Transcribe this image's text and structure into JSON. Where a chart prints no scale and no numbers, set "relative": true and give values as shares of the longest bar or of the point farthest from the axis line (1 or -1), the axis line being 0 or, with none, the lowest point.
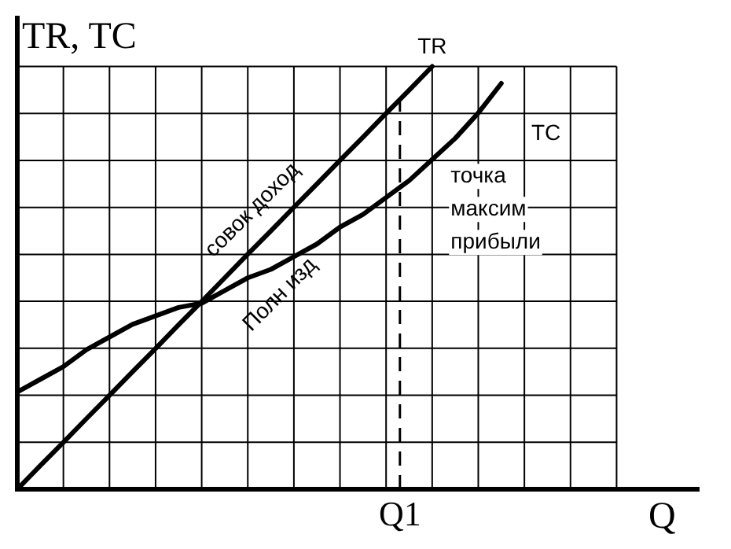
{
  "chart_data": {
    "type": "line",
    "relative": true,
    "ylabel": "TR, TC",
    "xlabel": "Q",
    "grid": true,
    "legend": false,
    "marker": "none",
    "line_style": "solid",
    "categories": [
      null,
      null,
      null,
      null,
      null,
      null,
      null,
      null,
      null,
      null,
      null,
      null,
      null,
      null,
      null,
      null,
      null,
      null,
      null,
      null,
      null,
      null,
      null,
      null,
      null,
      null,
      null,
      null,
      null
    ],
    "series": [
      {
        "name": "TR",
        "color": "#000000",
        "values": [
          0,
          0.056,
          0.111,
          0.167,
          0.222,
          0.278,
          0.333,
          0.389,
          0.444,
          0.5,
          0.556,
          0.611,
          0.667,
          0.722,
          0.778,
          0.833,
          0.889,
          0.944,
          1,
          null,
          null,
          null,
          null,
          null,
          null,
          null,
          null,
          null,
          null
        ]
      },
      {
        "name": "TC",
        "color": "#000000",
        "values": [
          0.23,
          0.26,
          0.29,
          0.33,
          0.36,
          0.39,
          0.41,
          0.43,
          0.44,
          0.47,
          0.5,
          0.52,
          0.55,
          0.58,
          0.62,
          0.65,
          0.69,
          0.73,
          0.78,
          0.83,
          0.89,
          0.96,
          null,
          null,
          null,
          null,
          null,
          null,
          null
        ]
      }
    ],
    "annotations": [
      "совок доход",
      "Полн изд",
      "точка\nмаксим\nприбыли",
      "Q1"
    ]
  }
}
